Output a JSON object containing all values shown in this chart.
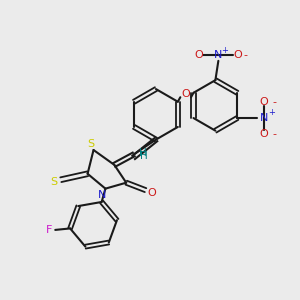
{
  "bg_color": "#ebebeb",
  "bond_color": "#1a1a1a",
  "atom_colors": {
    "S": "#cccc00",
    "N": "#1a1acc",
    "O": "#cc1a1a",
    "F": "#cc1acc",
    "H": "#008080",
    "Nplus": "#1a1acc",
    "Ominus": "#cc1a1a"
  }
}
